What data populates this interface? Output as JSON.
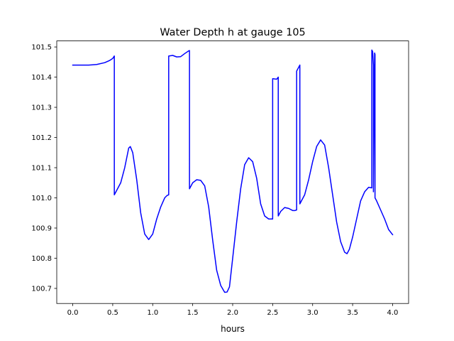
{
  "chart_data": {
    "type": "line",
    "title": "Water Depth h at gauge 105",
    "xlabel": "hours",
    "ylabel": "",
    "xlim": [
      -0.2,
      4.2
    ],
    "ylim": [
      100.65,
      101.52
    ],
    "xticks": [
      0.0,
      0.5,
      1.0,
      1.5,
      2.0,
      2.5,
      3.0,
      3.5,
      4.0
    ],
    "xtick_labels": [
      "0.0",
      "0.5",
      "1.0",
      "1.5",
      "2.0",
      "2.5",
      "3.0",
      "3.5",
      "4.0"
    ],
    "yticks": [
      100.7,
      100.8,
      100.9,
      101.0,
      101.1,
      101.2,
      101.3,
      101.4,
      101.5
    ],
    "ytick_labels": [
      "100.7",
      "100.8",
      "100.9",
      "101.0",
      "101.1",
      "101.2",
      "101.3",
      "101.4",
      "101.5"
    ],
    "grid": false,
    "legend": "none",
    "series": [
      {
        "color": "#0000ff",
        "x": [
          0.0,
          0.2,
          0.3,
          0.4,
          0.46,
          0.5,
          0.52,
          0.52,
          0.55,
          0.6,
          0.65,
          0.7,
          0.72,
          0.75,
          0.8,
          0.85,
          0.9,
          0.95,
          1.0,
          1.05,
          1.1,
          1.15,
          1.18,
          1.2,
          1.2,
          1.25,
          1.3,
          1.35,
          1.4,
          1.45,
          1.46,
          1.46,
          1.5,
          1.55,
          1.6,
          1.65,
          1.7,
          1.75,
          1.8,
          1.85,
          1.9,
          1.93,
          1.96,
          2.0,
          2.05,
          2.1,
          2.15,
          2.2,
          2.25,
          2.3,
          2.35,
          2.4,
          2.45,
          2.5,
          2.5,
          2.55,
          2.57,
          2.57,
          2.6,
          2.65,
          2.7,
          2.75,
          2.78,
          2.8,
          2.8,
          2.84,
          2.84,
          2.9,
          2.95,
          3.0,
          3.05,
          3.1,
          3.15,
          3.2,
          3.25,
          3.3,
          3.35,
          3.4,
          3.43,
          3.46,
          3.5,
          3.55,
          3.6,
          3.65,
          3.7,
          3.74,
          3.74,
          3.75,
          3.76,
          3.76,
          3.775,
          3.78,
          3.78,
          3.8,
          3.85,
          3.9,
          3.95,
          4.0
        ],
        "y": [
          101.44,
          101.44,
          101.442,
          101.448,
          101.455,
          101.462,
          101.47,
          101.01,
          101.025,
          101.05,
          101.1,
          101.165,
          101.17,
          101.15,
          101.06,
          100.95,
          100.88,
          100.862,
          100.88,
          100.93,
          100.97,
          101.0,
          101.008,
          101.01,
          101.47,
          101.472,
          101.467,
          101.468,
          101.478,
          101.487,
          101.488,
          101.03,
          101.05,
          101.06,
          101.058,
          101.04,
          100.97,
          100.86,
          100.76,
          100.71,
          100.687,
          100.688,
          100.705,
          100.8,
          100.92,
          101.03,
          101.11,
          101.133,
          101.12,
          101.065,
          100.98,
          100.94,
          100.93,
          100.93,
          101.395,
          101.393,
          101.4,
          100.94,
          100.955,
          100.968,
          100.965,
          100.958,
          100.958,
          100.96,
          101.42,
          101.44,
          100.98,
          101.01,
          101.06,
          101.12,
          101.17,
          101.192,
          101.175,
          101.1,
          101.01,
          100.92,
          100.855,
          100.82,
          100.815,
          100.83,
          100.87,
          100.93,
          100.99,
          101.02,
          101.035,
          101.033,
          101.49,
          101.485,
          101.44,
          101.02,
          101.48,
          101.475,
          101.0,
          100.99,
          100.96,
          100.93,
          100.895,
          100.878
        ]
      }
    ]
  }
}
